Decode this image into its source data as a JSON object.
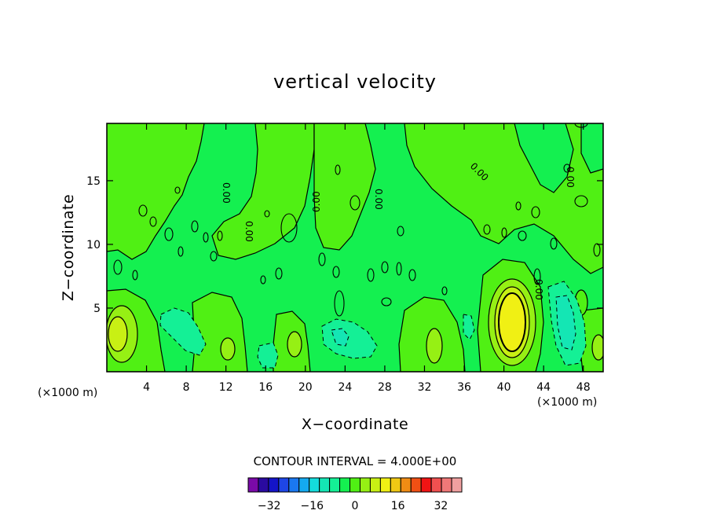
{
  "chart_data": {
    "type": "heatmap",
    "title": "vertical velocity",
    "xlabel": "X−coordinate",
    "ylabel": "Z−coordinate",
    "x_unit": "(×1000 m)",
    "y_unit": "(×1000 m)",
    "xlim": [
      0,
      50
    ],
    "ylim": [
      0,
      19.5
    ],
    "x_ticks": [
      4,
      8,
      12,
      16,
      20,
      24,
      28,
      32,
      36,
      40,
      44,
      48
    ],
    "y_ticks": [
      5,
      10,
      15
    ],
    "contour_interval_text": "CONTOUR INTERVAL = 4.000E+00",
    "contour_interval": 4,
    "zero_contour_label": "0.00",
    "colorbar": {
      "levels": [
        -36,
        -32,
        -28,
        -24,
        -20,
        -16,
        -12,
        -8,
        -4,
        0,
        4,
        8,
        12,
        16,
        20,
        24,
        28,
        32,
        36
      ],
      "tick_labels": [
        "−32",
        "−16",
        "0",
        "16",
        "32"
      ],
      "tick_values": [
        -32,
        -16,
        0,
        16,
        32
      ],
      "colors": [
        "#7a0aa8",
        "#2a0aa0",
        "#1414c8",
        "#1e46e6",
        "#1a78f0",
        "#14aaf0",
        "#14dcdc",
        "#14e6b4",
        "#14f096",
        "#14f050",
        "#50f014",
        "#96f014",
        "#c8f014",
        "#f0f014",
        "#f0c814",
        "#f08c14",
        "#f05014",
        "#f01414",
        "#f05050",
        "#f07878",
        "#f0a0a0"
      ]
    },
    "features": [
      {
        "kind": "updraft",
        "x": 41,
        "z": 4,
        "value": 16
      },
      {
        "kind": "updraft",
        "x": 1,
        "z": 3,
        "value": 12
      },
      {
        "kind": "updraft",
        "x": 33,
        "z": 2,
        "value": 8
      },
      {
        "kind": "updraft",
        "x": 19,
        "z": 2,
        "value": 8
      },
      {
        "kind": "updraft",
        "x": 12,
        "z": 2,
        "value": 8
      },
      {
        "kind": "updraft",
        "x": 49,
        "z": 2,
        "value": 8
      },
      {
        "kind": "downdraft",
        "x": 47,
        "z": 3.5,
        "value": -8
      },
      {
        "kind": "downdraft",
        "x": 23,
        "z": 2.5,
        "value": -8
      },
      {
        "kind": "downdraft",
        "x": 7,
        "z": 3.5,
        "value": -4
      },
      {
        "kind": "downdraft",
        "x": 16,
        "z": 1.5,
        "value": -4
      }
    ]
  }
}
